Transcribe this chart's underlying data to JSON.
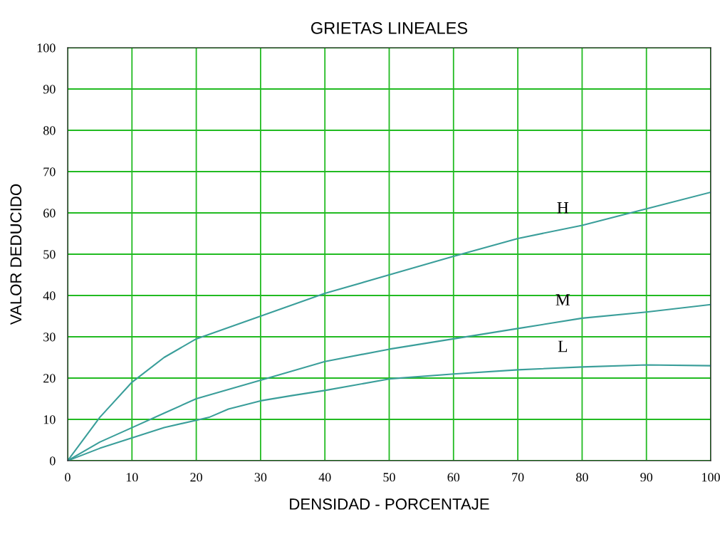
{
  "chart_data": {
    "type": "line",
    "title": "GRIETAS LINEALES",
    "xlabel": "DENSIDAD - PORCENTAJE",
    "ylabel": "VALOR DEDUCIDO",
    "xlim": [
      0,
      100
    ],
    "ylim": [
      0,
      100
    ],
    "xticks": [
      0,
      10,
      20,
      30,
      40,
      50,
      60,
      70,
      80,
      90,
      100
    ],
    "yticks": [
      0,
      10,
      20,
      30,
      40,
      50,
      60,
      70,
      80,
      90,
      100
    ],
    "grid": true,
    "legend": false,
    "marker": "none",
    "line_style": "solid",
    "series": [
      {
        "name": "H",
        "color": "#3a9e9a",
        "x": [
          0,
          5,
          10,
          15,
          20,
          30,
          40,
          50,
          60,
          70,
          80,
          90,
          100
        ],
        "values": [
          0,
          10.5,
          19,
          25,
          29.5,
          35,
          40.5,
          45,
          49.5,
          53.8,
          57,
          61,
          65
        ]
      },
      {
        "name": "M",
        "color": "#3a9e9a",
        "x": [
          0,
          5,
          10,
          15,
          20,
          30,
          40,
          50,
          60,
          70,
          80,
          90,
          100
        ],
        "values": [
          0,
          4.5,
          8,
          11.5,
          15,
          19.5,
          24,
          27,
          29.5,
          32,
          34.5,
          36,
          37.8
        ]
      },
      {
        "name": "L",
        "color": "#3a9e9a",
        "x": [
          0,
          5,
          10,
          15,
          20,
          22,
          25,
          30,
          35,
          40,
          50,
          60,
          70,
          80,
          90,
          100
        ],
        "values": [
          0,
          3,
          5.5,
          8,
          9.8,
          10.5,
          12.5,
          14.5,
          15.8,
          17,
          19.8,
          21,
          22,
          22.7,
          23.2,
          23
        ]
      }
    ]
  }
}
